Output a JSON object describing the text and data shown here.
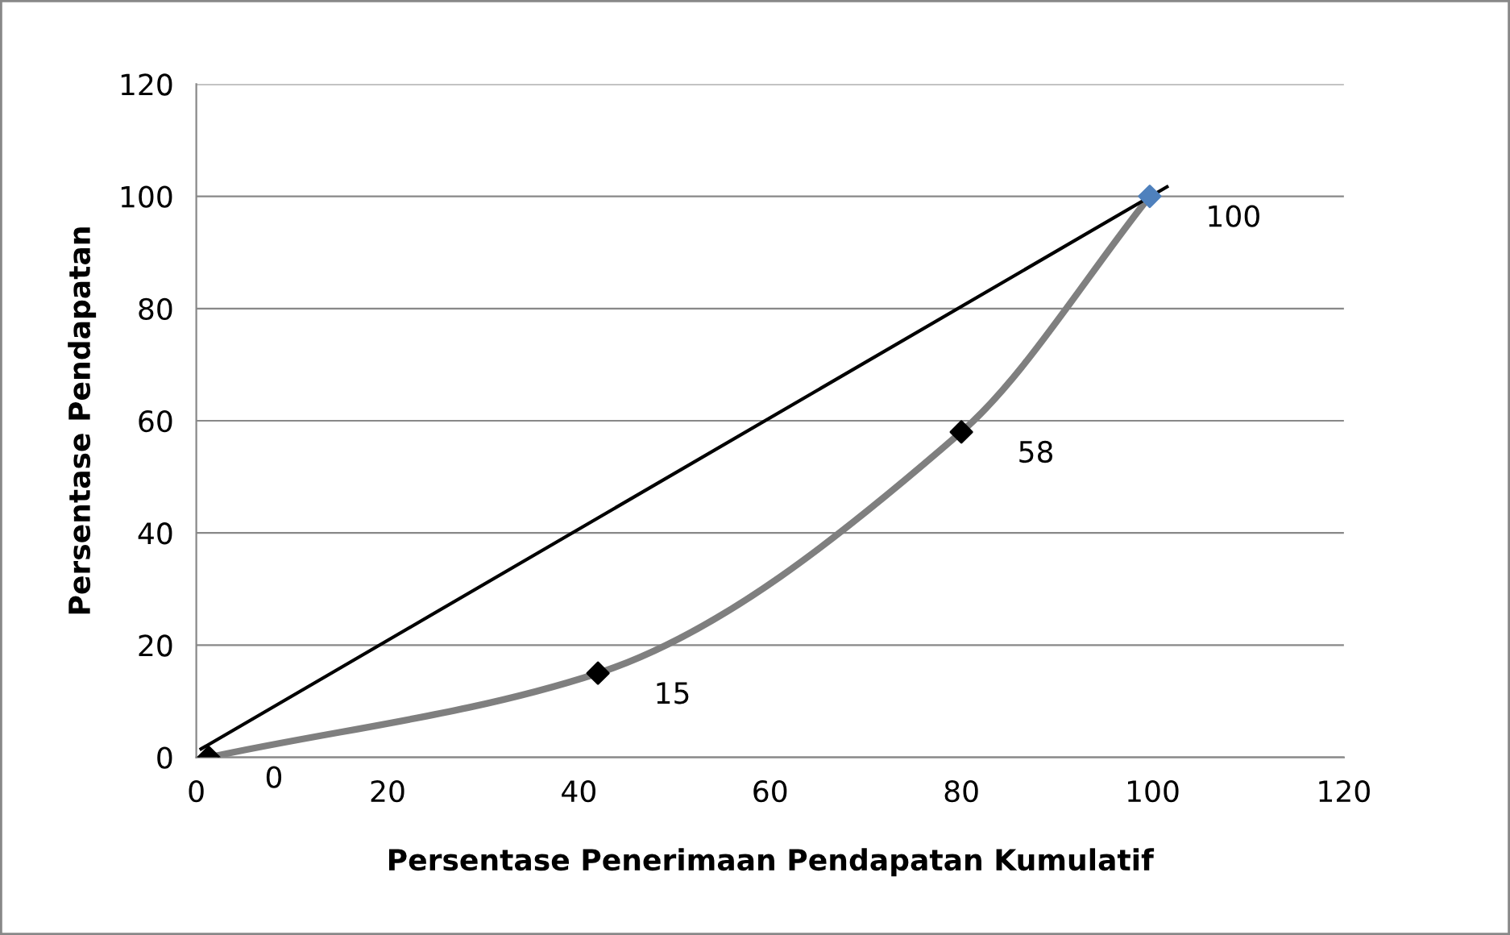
{
  "chart_data": {
    "type": "line",
    "xlabel": "Persentase Penerimaan Pendapatan Kumulatif",
    "ylabel": "Persentase Pendapatan",
    "xlim": [
      0,
      120
    ],
    "xticks": [
      0,
      20,
      40,
      60,
      80,
      100,
      120
    ],
    "ylim": [
      0,
      120
    ],
    "yticks": [
      0,
      20,
      40,
      60,
      80,
      100,
      120
    ],
    "grid": "y",
    "series": [
      {
        "x": [
          1.3,
          42,
          80,
          99.7
        ],
        "values": [
          0,
          15,
          58,
          100
        ],
        "color": "#7f7f7f",
        "colors": [
          "#000000",
          "#000000",
          "#000000",
          "#4f81bd"
        ],
        "marker": "diamond",
        "value_labels": [
          "0",
          "15",
          "58",
          "100"
        ]
      },
      {
        "x": [
          0.5,
          101.5
        ],
        "values": [
          1.5,
          101.7
        ],
        "color": "#000000",
        "marker": "none"
      }
    ]
  }
}
